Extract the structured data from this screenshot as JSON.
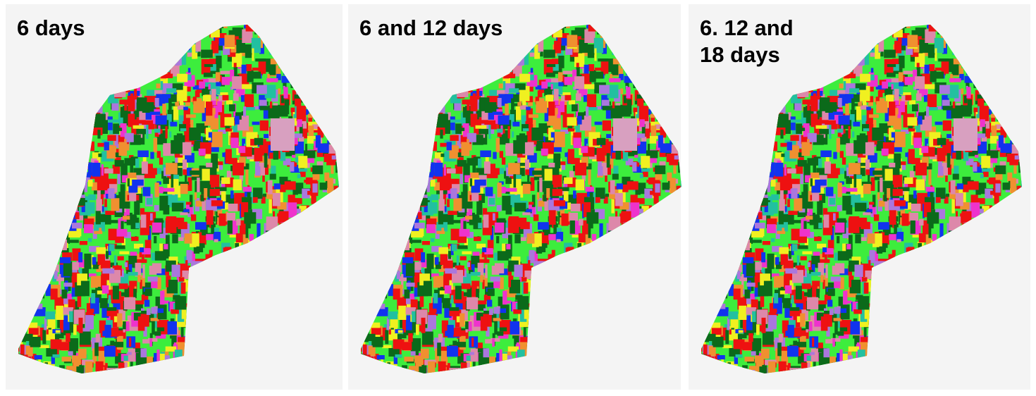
{
  "panels": [
    {
      "lines": [
        "6 days"
      ]
    },
    {
      "lines": [
        "6 and 12 days"
      ]
    },
    {
      "lines": [
        "6. 12 and",
        "18 days"
      ]
    }
  ]
}
